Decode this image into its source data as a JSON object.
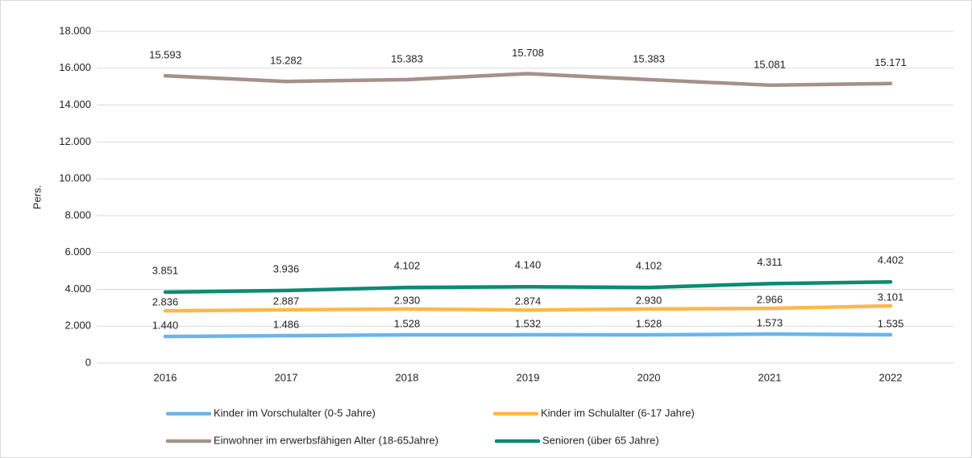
{
  "chart_data": {
    "type": "line",
    "y_label": "Pers.",
    "categories": [
      "2016",
      "2017",
      "2018",
      "2019",
      "2020",
      "2021",
      "2022"
    ],
    "ylim": [
      0,
      18000
    ],
    "yticks": [
      0,
      {
        "value": 2000,
        "label": "2.000"
      },
      {
        "value": 4000,
        "label": "4.000"
      },
      {
        "value": 6000,
        "label": "6.000"
      },
      {
        "value": 8000,
        "label": "8.000"
      },
      {
        "value": 10000,
        "label": "10.000"
      },
      {
        "value": 12000,
        "label": "12.000"
      },
      {
        "value": 14000,
        "label": "14.000"
      },
      {
        "value": 16000,
        "label": "16.000"
      },
      {
        "value": 18000,
        "label": "18.000"
      }
    ],
    "grid": true,
    "legend": "bottom",
    "series": [
      {
        "name": "Kinder im Vorschulalter (0-5 Jahre)",
        "color": "#6bb5ec",
        "values": [
          1440,
          1486,
          1528,
          1532,
          1528,
          1573,
          1535
        ],
        "value_labels": [
          "1.440",
          "1.486",
          "1.528",
          "1.532",
          "1.528",
          "1.573",
          "1.535"
        ]
      },
      {
        "name": "Kinder im Schulalter (6-17 Jahre)",
        "color": "#ffb74d",
        "values": [
          2836,
          2887,
          2930,
          2874,
          2930,
          2966,
          3101
        ],
        "value_labels": [
          "2.836",
          "2.887",
          "2.930",
          "2.874",
          "2.930",
          "2.966",
          "3.101"
        ]
      },
      {
        "name": "Einwohner im erwerbsfähigen Alter (18-65Jahre)",
        "color": "#a4918a",
        "values": [
          15593,
          15282,
          15383,
          15708,
          15383,
          15081,
          15171
        ],
        "value_labels": [
          "15.593",
          "15.282",
          "15.383",
          "15.708",
          "15.383",
          "15.081",
          "15.171"
        ]
      },
      {
        "name": "Senioren (über 65 Jahre)",
        "color": "#0d8a73",
        "values": [
          3851,
          3936,
          4102,
          4140,
          4102,
          4311,
          4402
        ],
        "value_labels": [
          "3.851",
          "3.936",
          "4.102",
          "4.140",
          "4.102",
          "4.311",
          "4.402"
        ]
      }
    ]
  }
}
